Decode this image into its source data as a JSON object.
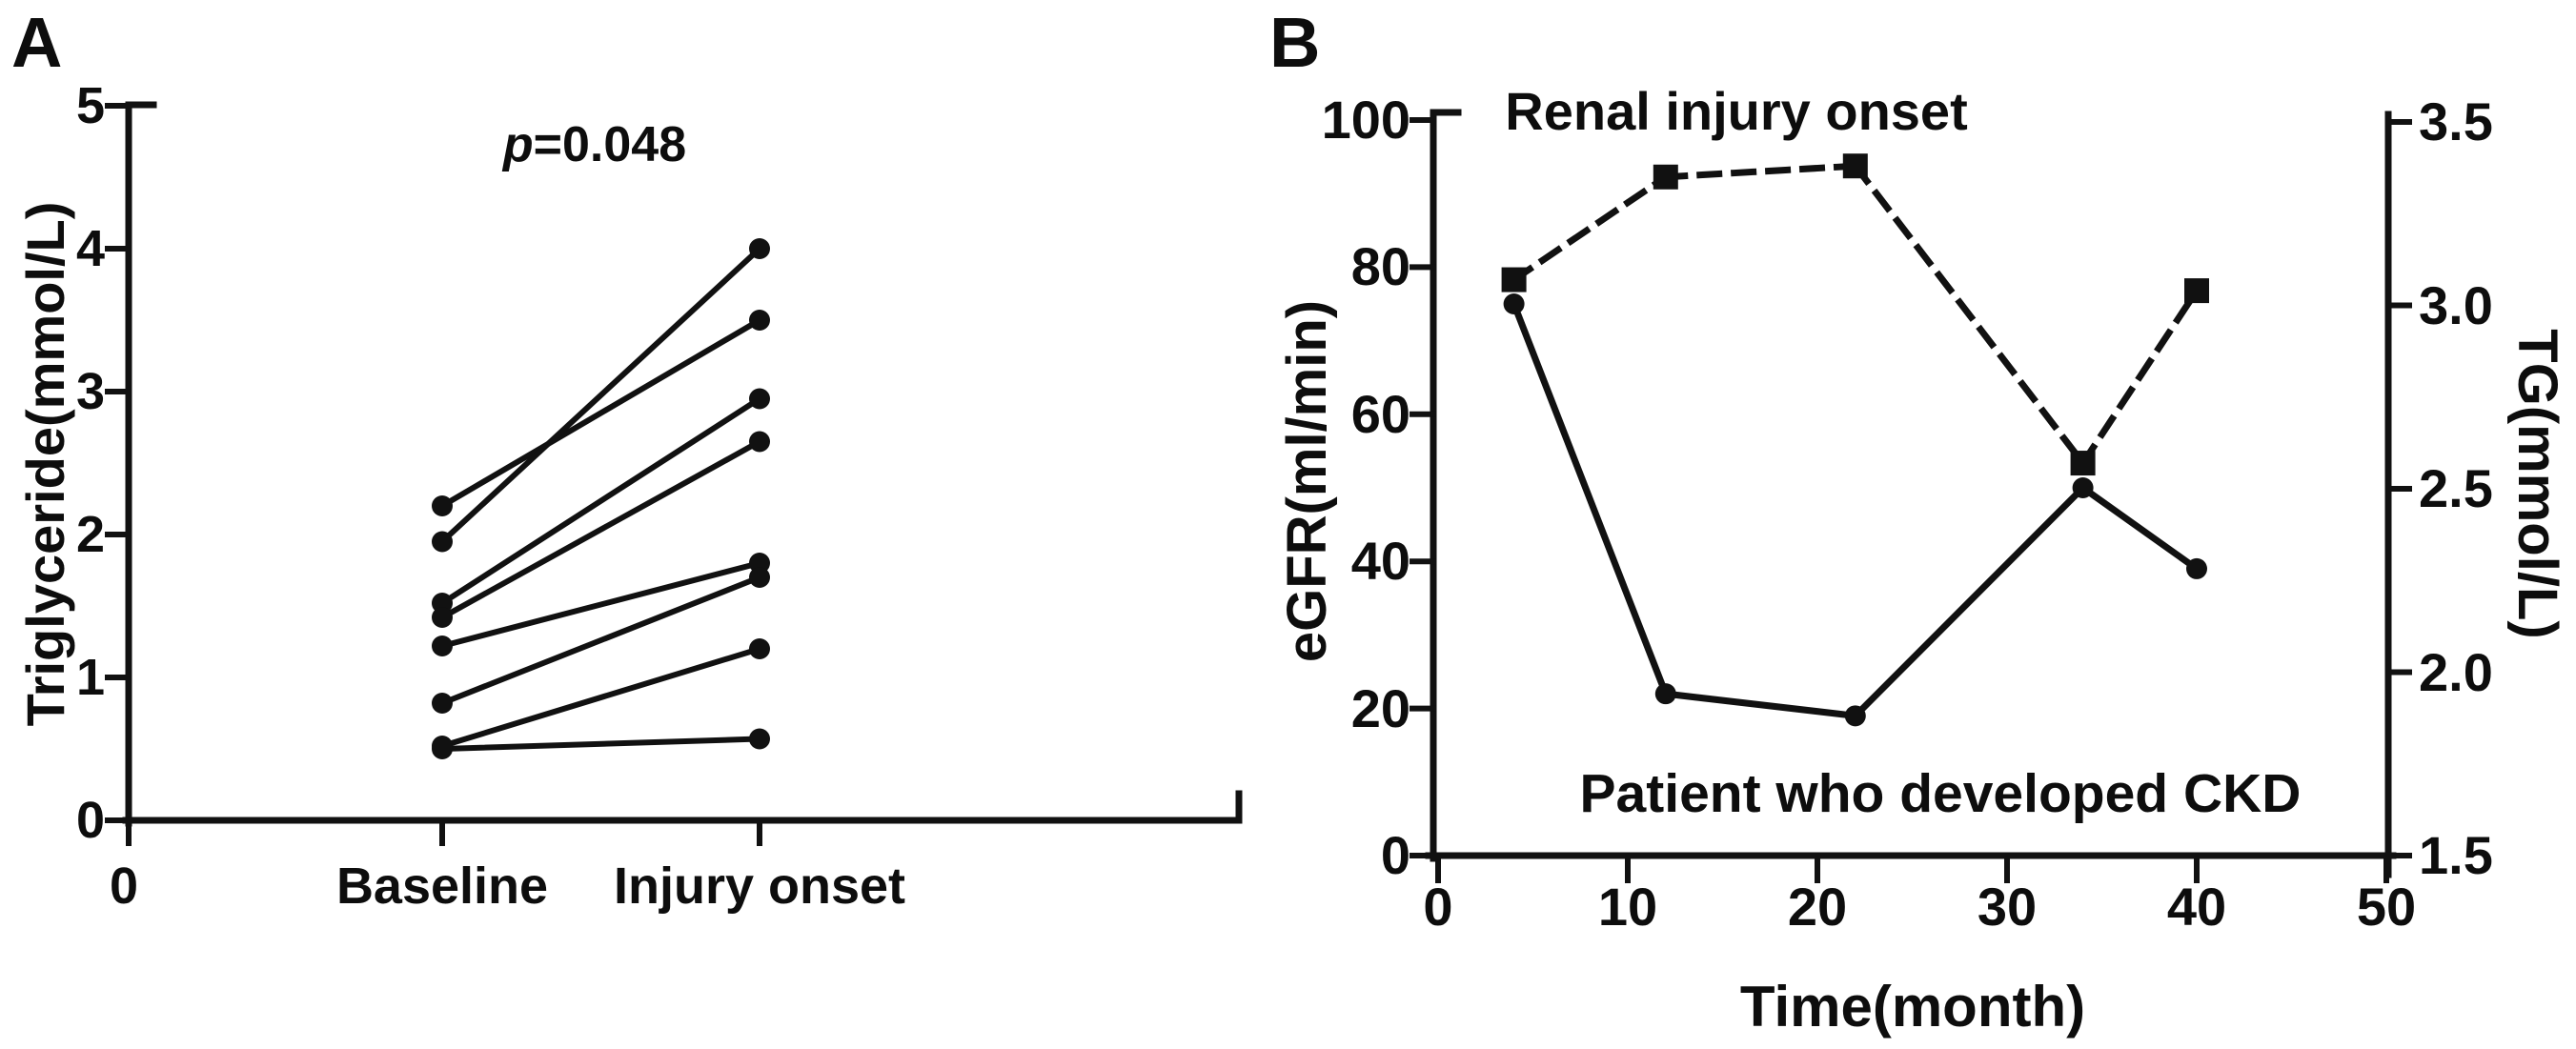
{
  "figure": {
    "panel_a_tag": "A",
    "panel_b_tag": "B",
    "ink_color": "#111111",
    "background_color": "#ffffff"
  },
  "chart_data": [
    {
      "id": "panel_a",
      "type": "line",
      "subtype": "paired-scatter",
      "annotation": "p=0.048",
      "ylabel": "Triglyceride(mmol/L)",
      "ylim": [
        0,
        5
      ],
      "yticks": [
        0,
        1,
        2,
        3,
        4,
        5
      ],
      "x_origin_label": "0",
      "categories": [
        "Baseline",
        "Injury onset"
      ],
      "marker": "circle",
      "patients": [
        {
          "baseline": 2.2,
          "injury_onset": 3.5
        },
        {
          "baseline": 1.95,
          "injury_onset": 4.0
        },
        {
          "baseline": 1.52,
          "injury_onset": 2.95
        },
        {
          "baseline": 1.42,
          "injury_onset": 2.65
        },
        {
          "baseline": 1.22,
          "injury_onset": 1.8
        },
        {
          "baseline": 0.82,
          "injury_onset": 1.7
        },
        {
          "baseline": 0.52,
          "injury_onset": 1.2
        },
        {
          "baseline": 0.5,
          "injury_onset": 0.57
        }
      ]
    },
    {
      "id": "panel_b",
      "type": "line",
      "annotation_top": "Renal injury onset",
      "annotation_bottom": "Patient who developed CKD",
      "xlabel": "Time(month)",
      "ylabel_left": "eGFR(ml/min)",
      "ylabel_right": "TG(mmol/L)",
      "xlim": [
        0,
        50
      ],
      "xticks": [
        0,
        10,
        20,
        30,
        40,
        50
      ],
      "ylim_left": [
        0,
        100
      ],
      "yticks_left": [
        0,
        20,
        40,
        60,
        80,
        100
      ],
      "ylim_right": [
        1.5,
        3.5
      ],
      "yticks_right": [
        "1.5",
        "2.0",
        "2.5",
        "3.0",
        "3.5"
      ],
      "legend": "none",
      "grid": false,
      "series": [
        {
          "name": "eGFR",
          "axis": "left",
          "line": "solid",
          "marker": "circle",
          "x": [
            4,
            12,
            22,
            34,
            40
          ],
          "y": [
            75,
            22,
            19,
            50,
            39
          ]
        },
        {
          "name": "TG",
          "axis": "right",
          "line": "dashed",
          "marker": "square",
          "x": [
            4,
            12,
            22,
            34,
            40
          ],
          "y": [
            3.07,
            3.35,
            3.38,
            2.57,
            3.04
          ]
        }
      ]
    }
  ]
}
